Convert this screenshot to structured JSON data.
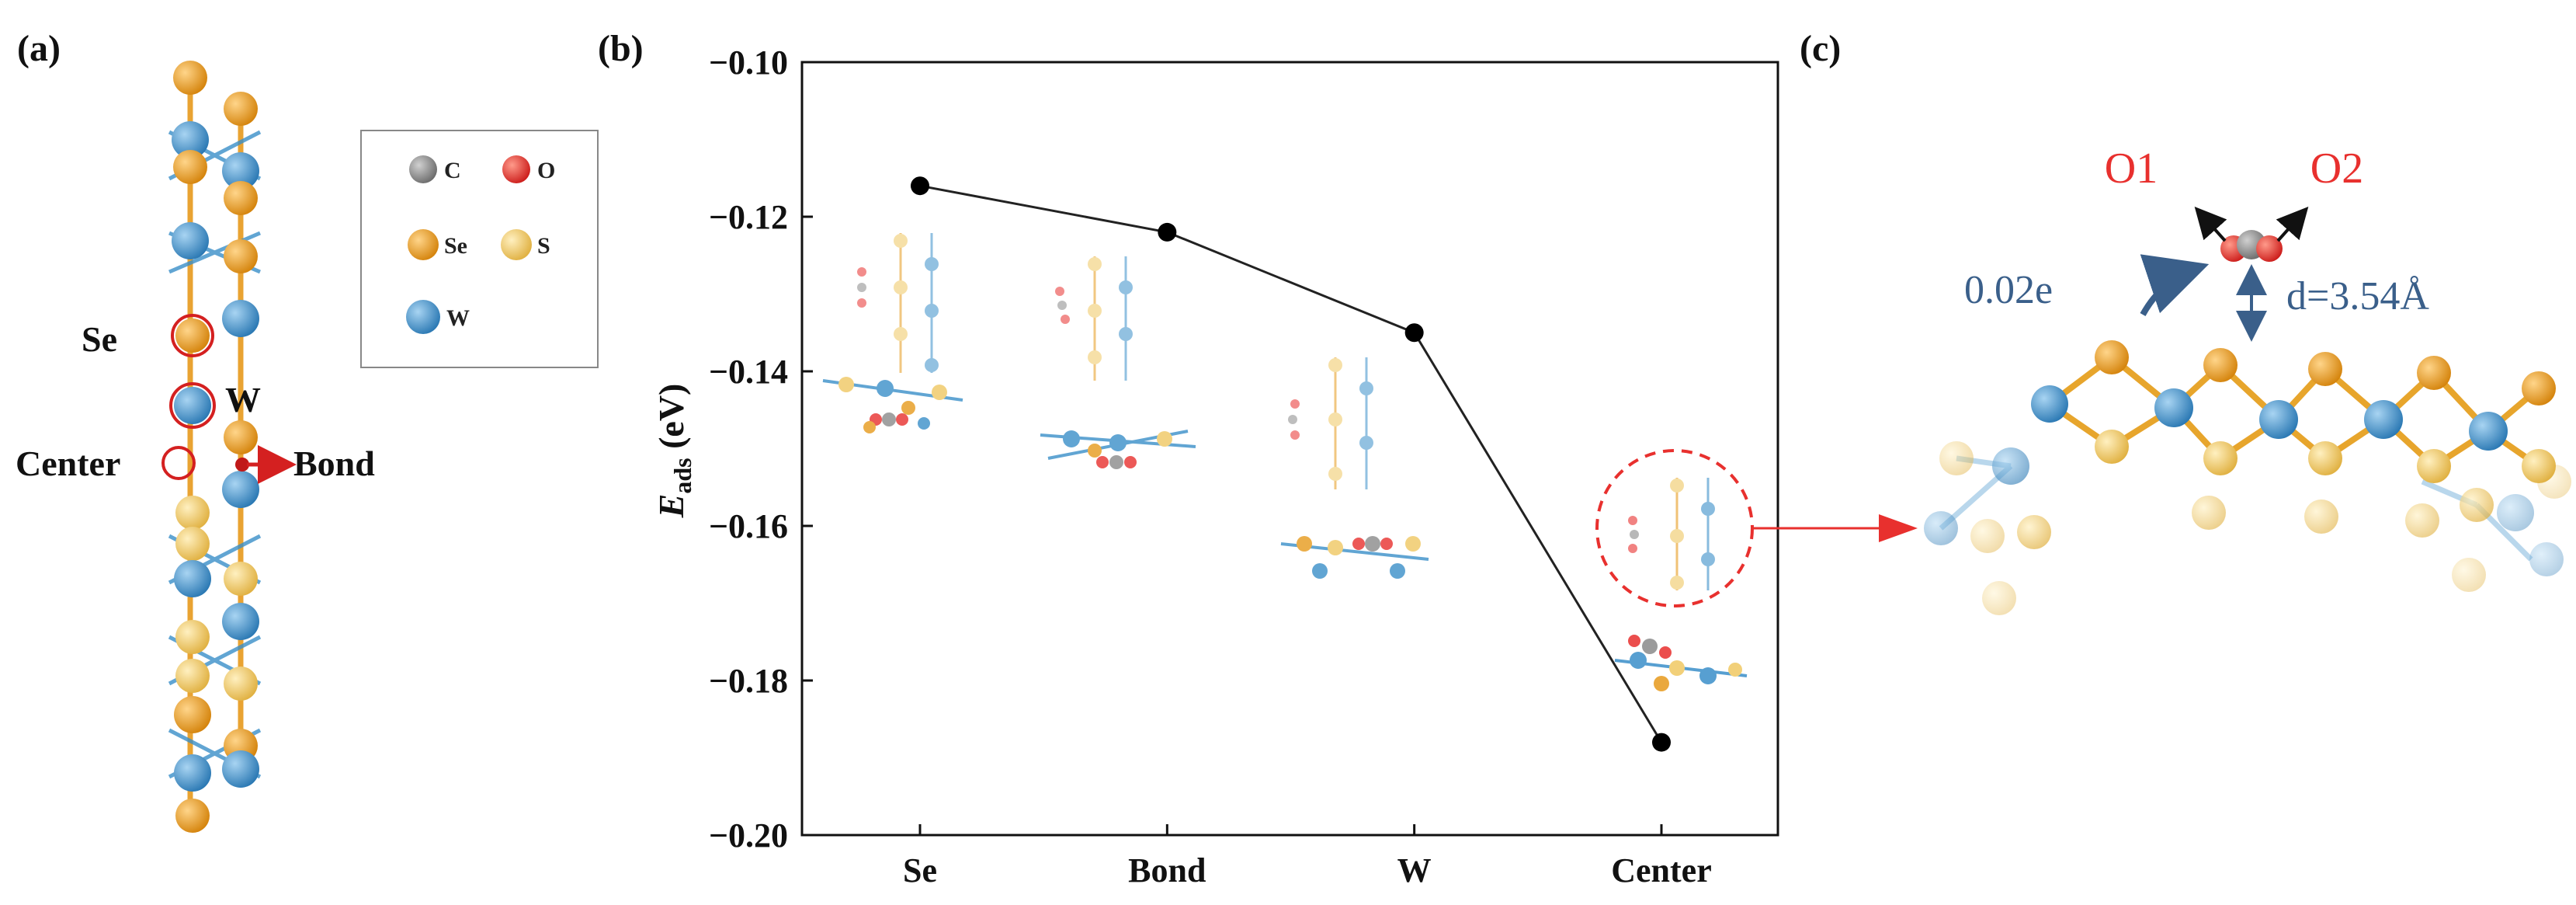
{
  "panels": {
    "a": {
      "label": "(a)",
      "site_labels": {
        "se": "Se",
        "w": "W",
        "center": "Center",
        "bond": "Bond"
      },
      "legend": [
        {
          "symbol": "C",
          "color": "#8a8a8a"
        },
        {
          "symbol": "O",
          "color": "#e8302e"
        },
        {
          "symbol": "Se",
          "color": "#e79a1c"
        },
        {
          "symbol": "S",
          "color": "#f0c862"
        },
        {
          "symbol": "W",
          "color": "#3a8fc9"
        }
      ]
    },
    "b": {
      "label": "(b)"
    },
    "c": {
      "label": "(c)",
      "o1": "O1",
      "o2": "O2",
      "charge": "0.02e",
      "distance": "d=3.54Å"
    }
  },
  "colors": {
    "se": "#e79a1c",
    "s": "#f0c862",
    "w": "#3a8fc9",
    "c": "#8a8a8a",
    "o": "#e8302e",
    "red_label": "#e8302e",
    "annot_blue": "#3a5f8a"
  },
  "chart_data": {
    "type": "line",
    "categories": [
      "Se",
      "Bond",
      "W",
      "Center"
    ],
    "values": [
      -0.116,
      -0.122,
      -0.135,
      -0.188
    ],
    "ylim": [
      -0.2,
      -0.1
    ],
    "yticks": [
      "-0.10",
      "-0.12",
      "-0.14",
      "-0.16",
      "-0.18",
      "-0.20"
    ],
    "ylabel_main": "E",
    "ylabel_sub": "ads",
    "ylabel_unit": " (eV)",
    "xlabel": "",
    "title": ""
  }
}
